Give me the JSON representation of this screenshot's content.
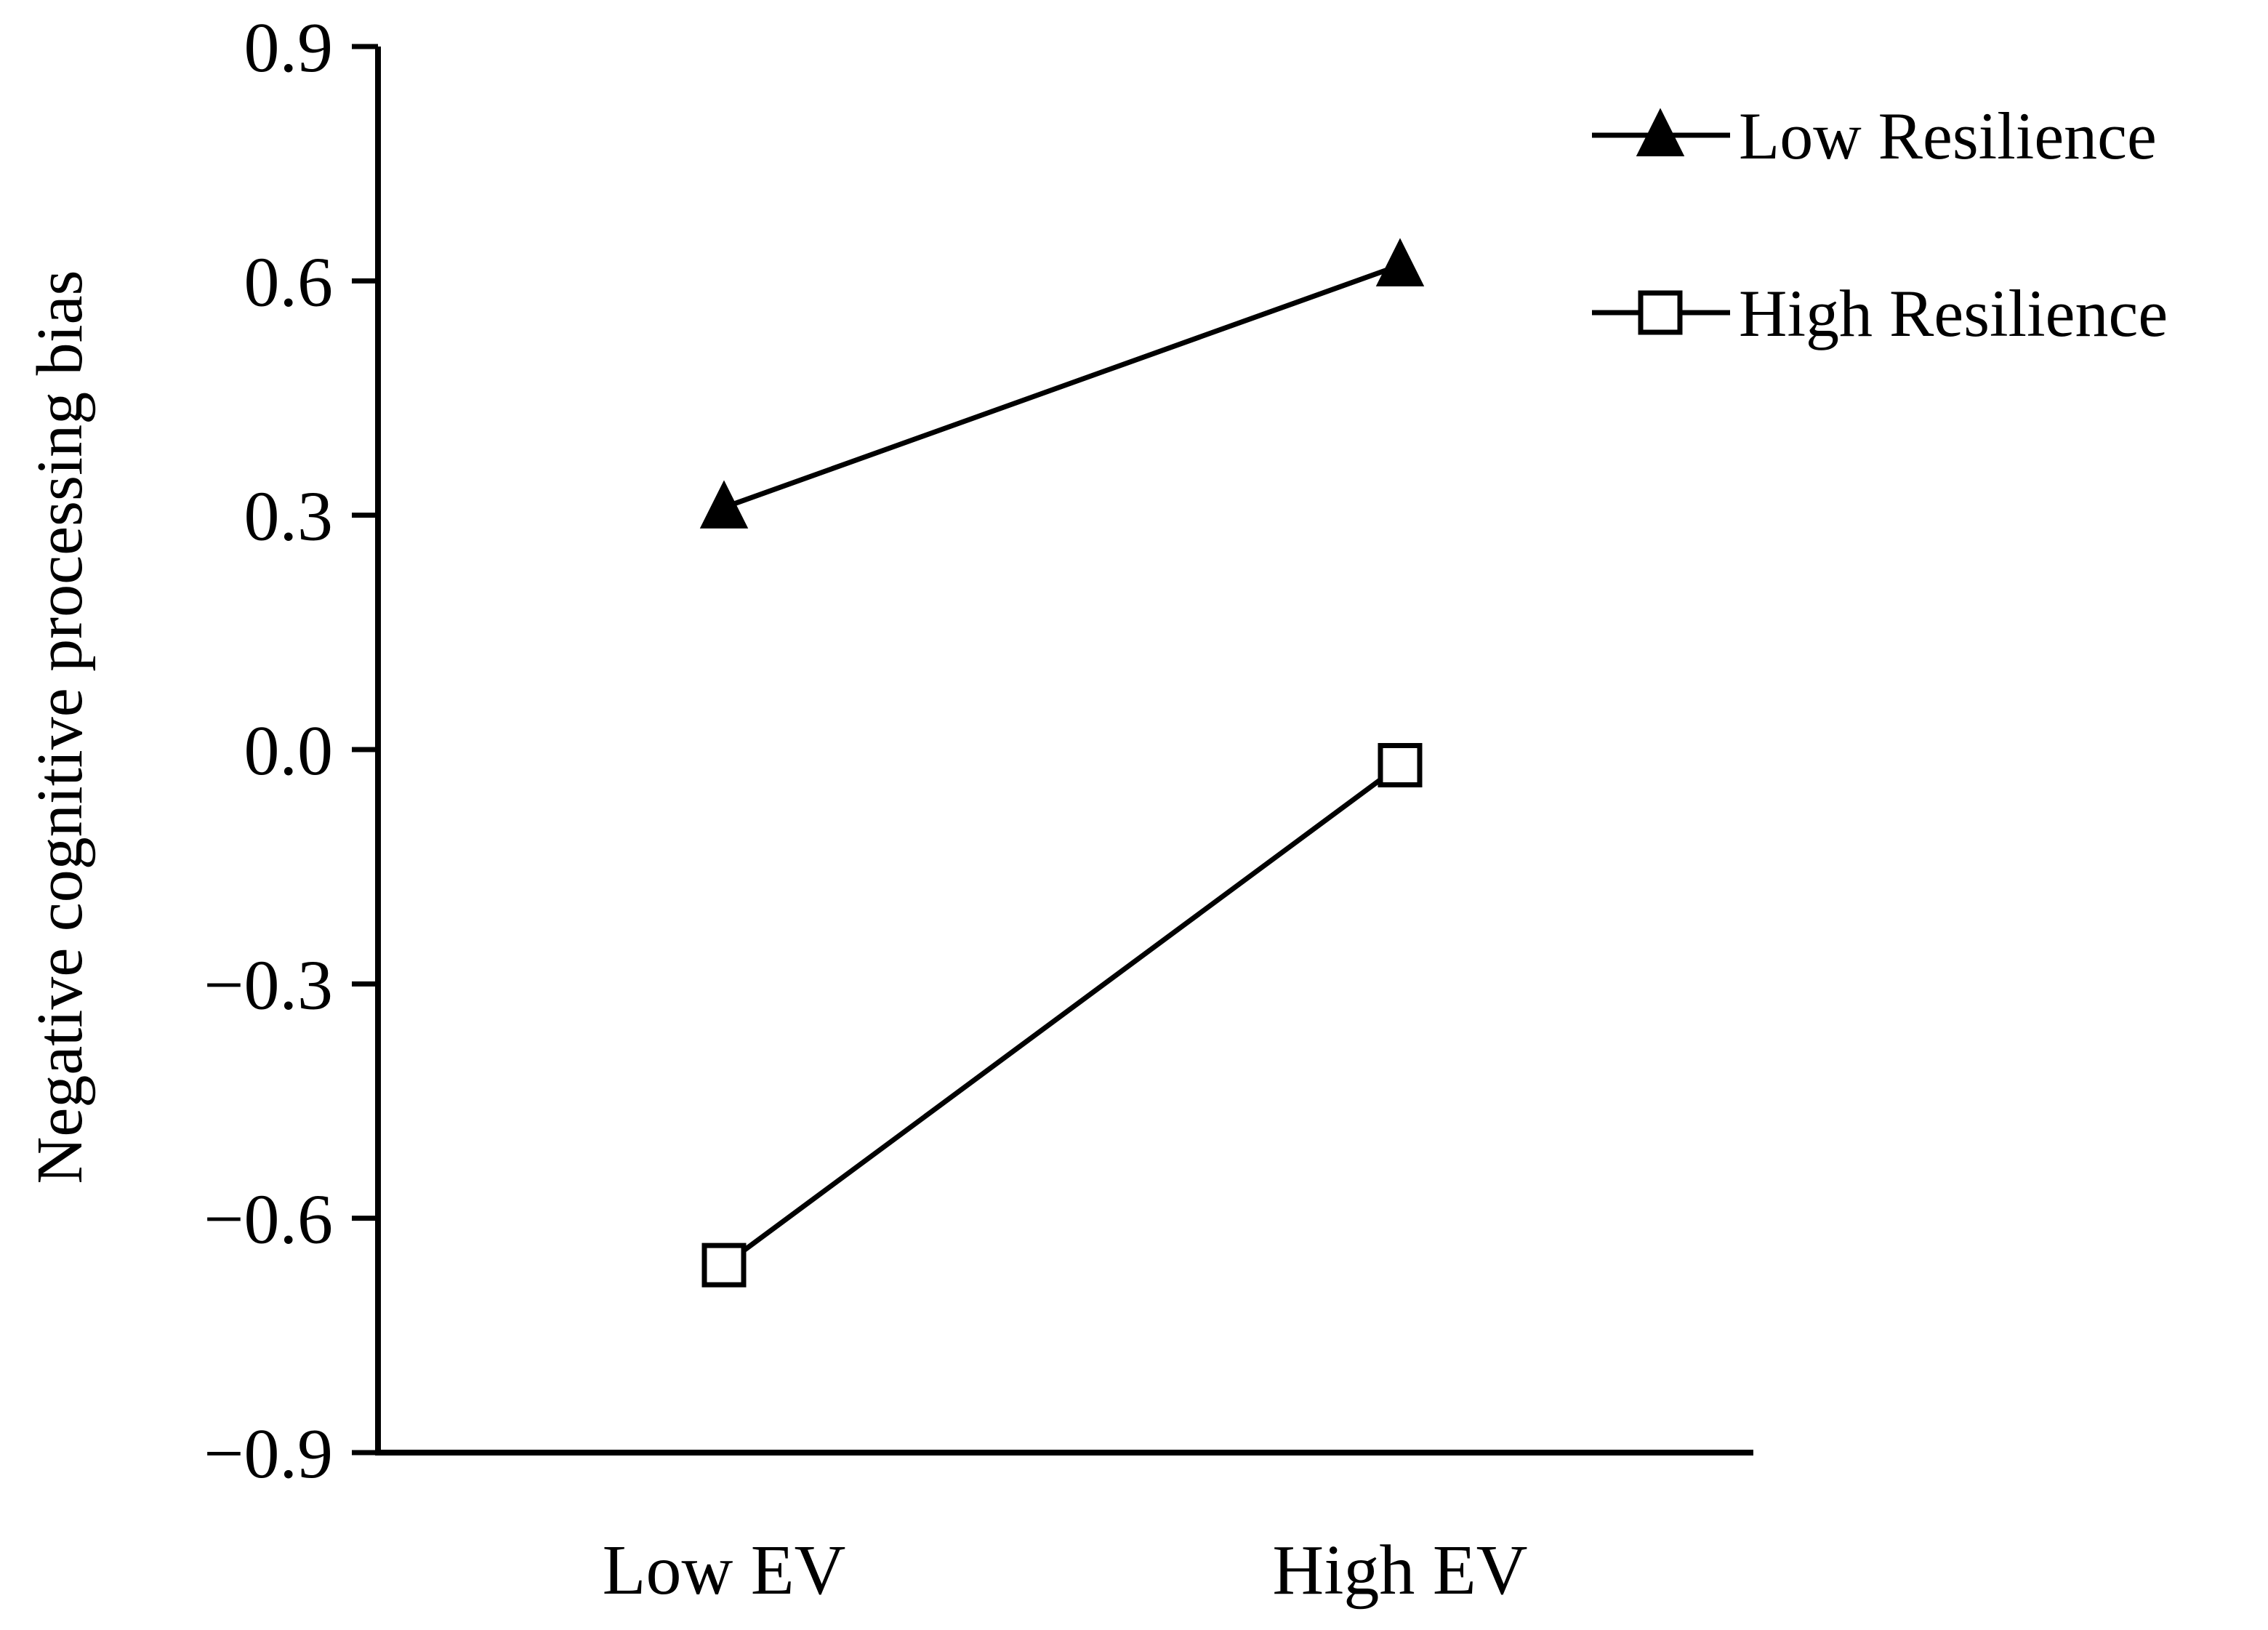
{
  "chart_data": {
    "type": "line",
    "title": "",
    "xlabel": "",
    "ylabel": "Negative cognitive processing bias",
    "categories": [
      "Low EV",
      "High EV"
    ],
    "ylim": [
      -0.9,
      0.9
    ],
    "yticks": [
      "0.9",
      "0.6",
      "0.3",
      "0.0",
      "−0.3",
      "−0.6",
      "−0.9"
    ],
    "ytick_values": [
      0.9,
      0.6,
      0.3,
      0.0,
      -0.3,
      -0.6,
      -0.9
    ],
    "grid": false,
    "legend_position": "top-right",
    "series": [
      {
        "name": "Low Resilience",
        "marker": "filled-triangle",
        "values": [
          0.31,
          0.62
        ]
      },
      {
        "name": "High Resilience",
        "marker": "open-square",
        "values": [
          -0.66,
          -0.02
        ]
      }
    ]
  },
  "colors": {
    "line": "#000000",
    "background": "#ffffff"
  }
}
